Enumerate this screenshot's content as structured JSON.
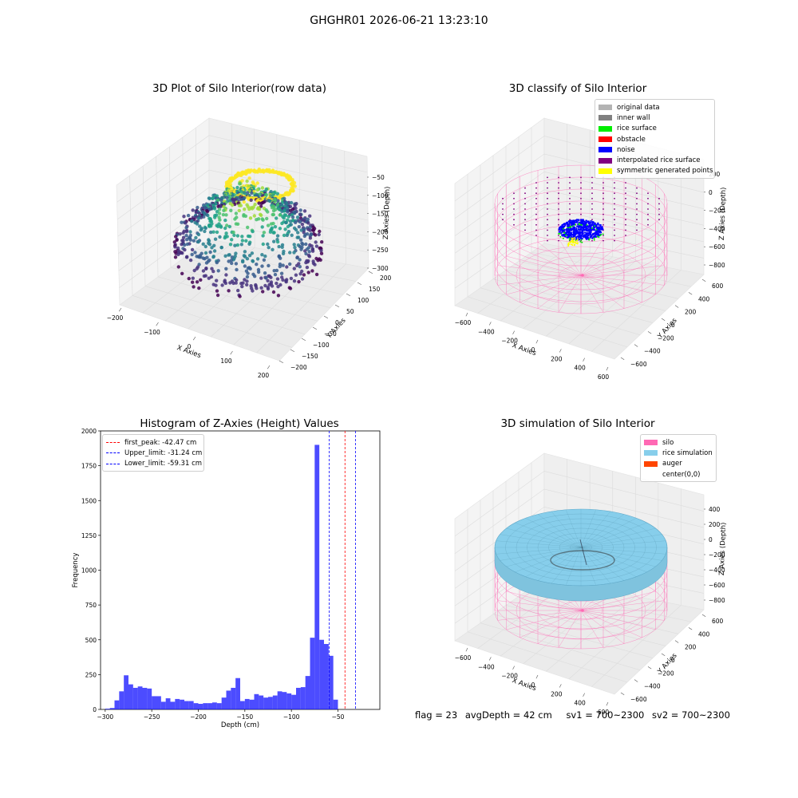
{
  "figure": {
    "suptitle": "GHGHR01 2026-06-21 13:23:10",
    "footer": {
      "flag": "flag = 23",
      "avg_depth": "avgDepth = 42 cm",
      "sv1": "sv1 = 700~2300",
      "sv2": "sv2 = 700~2300"
    }
  },
  "chart_data": [
    {
      "type": "scatter",
      "subtype": "3d",
      "title": "3D Plot of Silo Interior(row data)",
      "xlabel": "X Axies",
      "ylabel": "Y Axies",
      "zlabel": "Z Axies (Depth)",
      "xticks": [
        "−200",
        "−100",
        "0",
        "100",
        "200"
      ],
      "yticks": [
        "−200",
        "−150",
        "−100",
        "−50",
        "0",
        "50",
        "100",
        "150",
        "200"
      ],
      "zticks": [
        "−50",
        "−100",
        "−150",
        "−200",
        "−250",
        "−300"
      ],
      "colormap": "viridis",
      "colors": {
        "low": "#3b1c54",
        "mid": "#2b9c8a",
        "high": "#fde725"
      }
    },
    {
      "type": "scatter",
      "subtype": "3d",
      "title": "3D classify of Silo Interior",
      "xlabel": "X Axies",
      "ylabel": "Y Axies",
      "zlabel": "Z Axies (Depth)",
      "xticks": [
        "−600",
        "−400",
        "−200",
        "0",
        "200",
        "400",
        "600"
      ],
      "yticks": [
        "−600",
        "−400",
        "−200",
        "0",
        "200",
        "400",
        "600"
      ],
      "zticks": [
        "200",
        "0",
        "−200",
        "−400",
        "−600",
        "−800"
      ],
      "legend_position": "top-right",
      "legend": [
        {
          "label": "original data",
          "color": "#b3b3b3"
        },
        {
          "label": "inner wall",
          "color": "#808080"
        },
        {
          "label": "rice surface",
          "color": "#00ee00"
        },
        {
          "label": "obstacle",
          "color": "#ff0000"
        },
        {
          "label": "noise",
          "color": "#0000ff"
        },
        {
          "label": "interpolated rice surface",
          "color": "#800080"
        },
        {
          "label": "symmetric generated points",
          "color": "#ffff00"
        }
      ],
      "wall_color": "#ff69b4"
    },
    {
      "type": "bar",
      "subtype": "histogram",
      "title": "Histogram of Z-Axies (Height) Values",
      "xlabel": "Depth (cm)",
      "ylabel": "Frequency",
      "xlim": [
        -305,
        -5
      ],
      "ylim": [
        0,
        2000
      ],
      "xticks": [
        -300,
        -250,
        -200,
        -150,
        -100,
        -50
      ],
      "yticks": [
        0,
        250,
        500,
        750,
        1000,
        1250,
        1500,
        1750,
        2000
      ],
      "bin_width": 5,
      "bin_start": -300,
      "values": [
        5,
        10,
        65,
        130,
        245,
        180,
        155,
        165,
        155,
        150,
        95,
        95,
        55,
        80,
        55,
        75,
        70,
        60,
        60,
        45,
        40,
        45,
        45,
        50,
        45,
        85,
        135,
        155,
        225,
        60,
        75,
        70,
        110,
        100,
        85,
        90,
        100,
        130,
        125,
        115,
        105,
        155,
        160,
        240,
        515,
        1900,
        500,
        470,
        385,
        70
      ],
      "bar_color": "#0000ff",
      "bar_opacity": 0.7,
      "legend_position": "top-left",
      "lines": [
        {
          "label": "first_peak: -42.47 cm",
          "x": -42.47,
          "color": "#ff0000"
        },
        {
          "label": "Upper_limit: -31.24 cm",
          "x": -31.24,
          "color": "#0000ff"
        },
        {
          "label": "Lower_limit: -59.31 cm",
          "x": -59.31,
          "color": "#0000ff"
        }
      ]
    },
    {
      "type": "area",
      "subtype": "3d-surface",
      "title": "3D simulation of Silo Interior",
      "xlabel": "X Axies",
      "ylabel": "Y Axies",
      "zlabel": "Z Axies (Depth)",
      "xticks": [
        "−600",
        "−400",
        "−200",
        "0",
        "200",
        "400",
        "600"
      ],
      "yticks": [
        "−600",
        "−400",
        "−200",
        "0",
        "200",
        "400",
        "600"
      ],
      "zticks": [
        "400",
        "200",
        "0",
        "−200",
        "−400",
        "−600",
        "−800"
      ],
      "legend_position": "top-right",
      "legend": [
        {
          "label": "silo",
          "color": "#ff69b4"
        },
        {
          "label": "rice simulation",
          "color": "#87ceeb"
        },
        {
          "label": "auger",
          "color": "#ff4500"
        },
        {
          "label": "center(0,0)",
          "color": ""
        }
      ]
    }
  ]
}
